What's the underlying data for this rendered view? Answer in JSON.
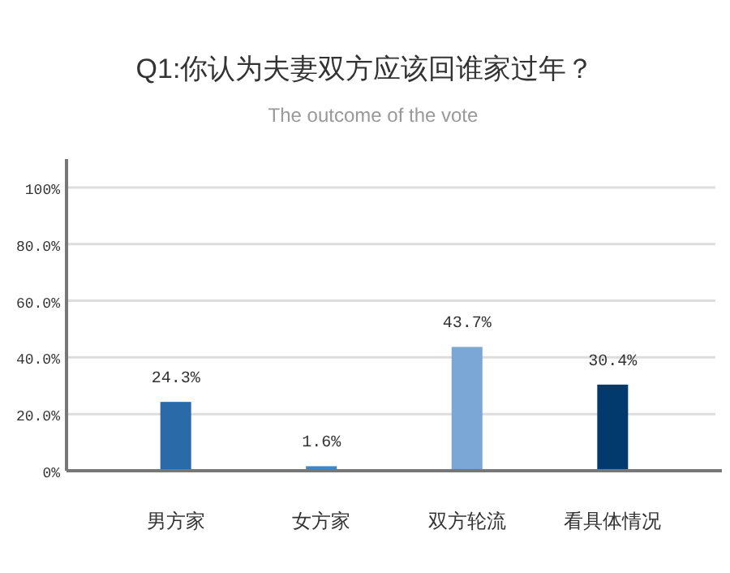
{
  "chart_data": {
    "type": "bar",
    "title": "Q1:你认为夫妻双方应该回谁家过年？",
    "subtitle": "The outcome of the vote",
    "categories": [
      "男方家",
      "女方家",
      "双方轮流",
      "看具体情况"
    ],
    "values": [
      24.3,
      1.6,
      43.7,
      30.4
    ],
    "colors": [
      "#2a6aa8",
      "#3f86c6",
      "#7ba7d6",
      "#033a6e"
    ],
    "value_labels": [
      "24.3%",
      "1.6%",
      "43.7%",
      "30.4%"
    ],
    "ylim": [
      0,
      110
    ],
    "yticks": [
      {
        "value": 0,
        "label": "0%"
      },
      {
        "value": 20,
        "label": "20.0%"
      },
      {
        "value": 40,
        "label": "40.0%"
      },
      {
        "value": 60,
        "label": "60.0%"
      },
      {
        "value": 80,
        "label": "80.0%"
      },
      {
        "value": 100,
        "label": "100%"
      }
    ],
    "grid": "y"
  }
}
